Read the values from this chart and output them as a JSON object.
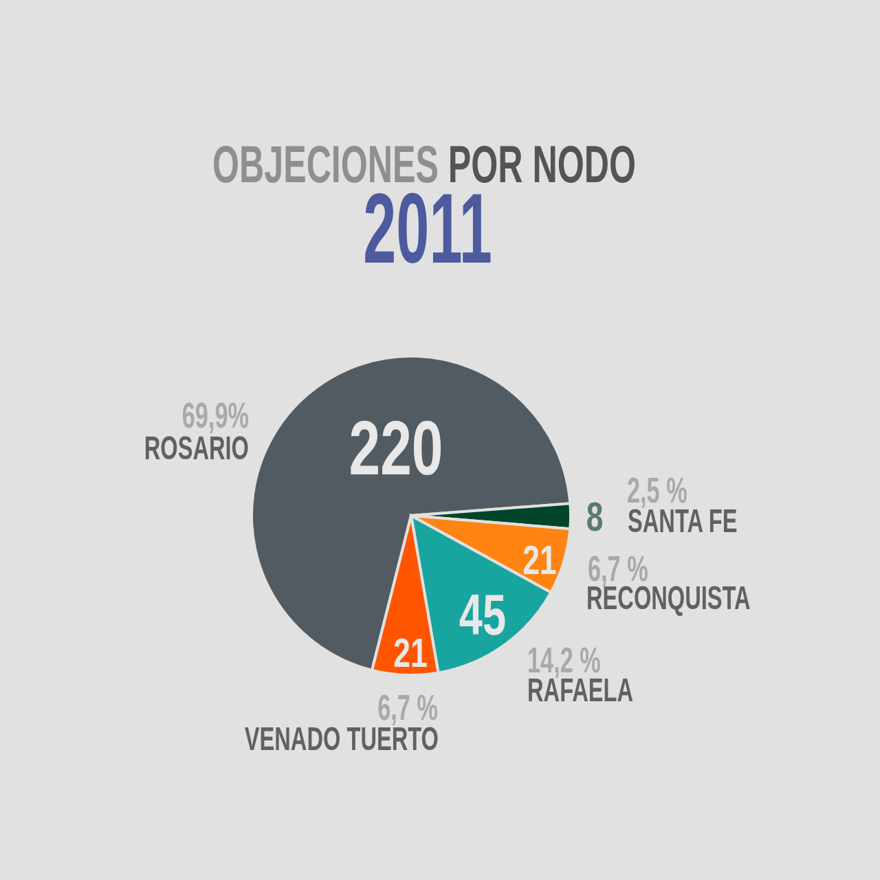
{
  "chart_data": {
    "type": "pie",
    "title": "OBJECIONES POR NODO",
    "subtitle": "2011",
    "categories": [
      "ROSARIO",
      "SANTA FE",
      "RECONQUISTA",
      "RAFAELA",
      "VENADO TUERTO"
    ],
    "values": [
      220,
      8,
      21,
      45,
      21
    ],
    "colors": [
      "#525b61",
      "#00452a",
      "#ff8412",
      "#19a59f",
      "#ff5500"
    ],
    "data_labels": true,
    "annotations": [
      "69,9%",
      "2,5 %",
      "6,7 %",
      "14,2 %",
      "6,7 %"
    ]
  }
}
